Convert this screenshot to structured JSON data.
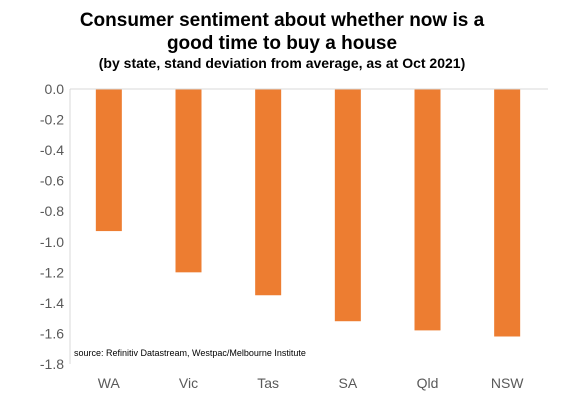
{
  "chart_data": {
    "type": "bar",
    "title_lines": [
      "Consumer sentiment about whether now is a",
      "good time to buy a house"
    ],
    "subtitle": "(by state, stand  deviation from average, as at Oct 2021)",
    "categories": [
      "WA",
      "Vic",
      "Tas",
      "SA",
      "Qld",
      "NSW"
    ],
    "values": [
      -0.93,
      -1.2,
      -1.35,
      -1.52,
      -1.58,
      -1.62
    ],
    "ylim": [
      -1.8,
      0.0
    ],
    "yticks": [
      "0.0",
      "-0.2",
      "-0.4",
      "-0.6",
      "-0.8",
      "-1.0",
      "-1.2",
      "-1.4",
      "-1.6",
      "-1.8"
    ],
    "source": "source:  Refinitiv Datastream,  Westpac/Melbourne  Institute",
    "bar_color": "#ED7D31",
    "grid": false
  }
}
